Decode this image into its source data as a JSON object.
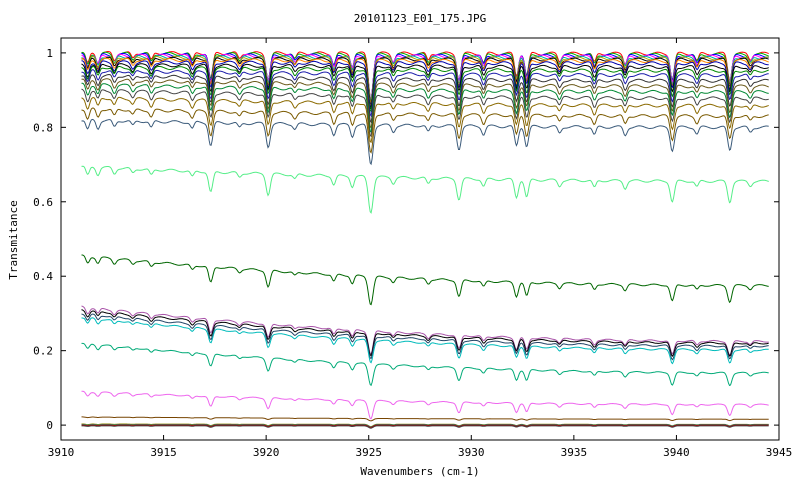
{
  "chart_data": {
    "type": "line",
    "title": "20101123_E01_175.JPG",
    "xlabel": "Wavenumbers (cm-1)",
    "ylabel": "Transmitance",
    "xlim": [
      3910,
      3945
    ],
    "ylim": [
      -0.04,
      1.04
    ],
    "x_ticks": [
      3910,
      3915,
      3920,
      3925,
      3930,
      3935,
      3940,
      3945
    ],
    "x_tick_labels": [
      "3910",
      "3915",
      "3920",
      "3925",
      "3930",
      "3935",
      "3940",
      "3945"
    ],
    "y_ticks": [
      0,
      0.2,
      0.4,
      0.6,
      0.8,
      1
    ],
    "y_tick_labels": [
      "0",
      "0.2",
      "0.4",
      "0.6",
      "0.8",
      "1"
    ],
    "grid": false,
    "legend": "none",
    "x_start": 3911,
    "x_end": 3944.5,
    "absorption_lines": [
      {
        "center": 3911.3,
        "depth": 0.03,
        "width": 0.12
      },
      {
        "center": 3911.8,
        "depth": 0.025,
        "width": 0.12
      },
      {
        "center": 3912.6,
        "depth": 0.02,
        "width": 0.12
      },
      {
        "center": 3913.5,
        "depth": 0.015,
        "width": 0.12
      },
      {
        "center": 3914.4,
        "depth": 0.02,
        "width": 0.12
      },
      {
        "center": 3916.4,
        "depth": 0.02,
        "width": 0.12
      },
      {
        "center": 3917.3,
        "depth": 0.07,
        "width": 0.14
      },
      {
        "center": 3918.7,
        "depth": 0.015,
        "width": 0.12
      },
      {
        "center": 3920.1,
        "depth": 0.07,
        "width": 0.14
      },
      {
        "center": 3921.4,
        "depth": 0.015,
        "width": 0.12
      },
      {
        "center": 3923.3,
        "depth": 0.03,
        "width": 0.12
      },
      {
        "center": 3924.2,
        "depth": 0.035,
        "width": 0.12
      },
      {
        "center": 3925.1,
        "depth": 0.12,
        "width": 0.16
      },
      {
        "center": 3926.2,
        "depth": 0.02,
        "width": 0.12
      },
      {
        "center": 3927.9,
        "depth": 0.02,
        "width": 0.12
      },
      {
        "center": 3929.4,
        "depth": 0.07,
        "width": 0.14
      },
      {
        "center": 3930.6,
        "depth": 0.025,
        "width": 0.12
      },
      {
        "center": 3932.2,
        "depth": 0.06,
        "width": 0.13
      },
      {
        "center": 3932.7,
        "depth": 0.06,
        "width": 0.13
      },
      {
        "center": 3934.3,
        "depth": 0.02,
        "width": 0.12
      },
      {
        "center": 3936.0,
        "depth": 0.025,
        "width": 0.12
      },
      {
        "center": 3937.5,
        "depth": 0.025,
        "width": 0.12
      },
      {
        "center": 3939.8,
        "depth": 0.07,
        "width": 0.14
      },
      {
        "center": 3941.0,
        "depth": 0.02,
        "width": 0.12
      },
      {
        "center": 3942.6,
        "depth": 0.07,
        "width": 0.14
      },
      {
        "center": 3943.6,
        "depth": 0.015,
        "width": 0.12
      }
    ],
    "series": [
      {
        "color": "#ff0000",
        "start": 1.0,
        "end": 0.998
      },
      {
        "color": "#00aa00",
        "start": 0.998,
        "end": 0.995
      },
      {
        "color": "#0000ff",
        "start": 0.995,
        "end": 0.992
      },
      {
        "color": "#ff00ff",
        "start": 0.993,
        "end": 0.99
      },
      {
        "color": "#00aaaa",
        "start": 0.99,
        "end": 0.987
      },
      {
        "color": "#aaaa00",
        "start": 0.988,
        "end": 0.985
      },
      {
        "color": "#000000",
        "start": 0.985,
        "end": 0.982
      },
      {
        "color": "#ff8800",
        "start": 0.982,
        "end": 0.978
      },
      {
        "color": "#0000aa",
        "start": 0.975,
        "end": 0.972
      },
      {
        "color": "#000000",
        "start": 0.968,
        "end": 0.962
      },
      {
        "color": "#008800",
        "start": 0.962,
        "end": 0.952
      },
      {
        "color": "#1a1aaa",
        "start": 0.952,
        "end": 0.94
      },
      {
        "color": "#333333",
        "start": 0.94,
        "end": 0.925
      },
      {
        "color": "#6b5a1a",
        "start": 0.928,
        "end": 0.91
      },
      {
        "color": "#008833",
        "start": 0.915,
        "end": 0.895
      },
      {
        "color": "#444444",
        "start": 0.9,
        "end": 0.878
      },
      {
        "color": "#8b6a00",
        "start": 0.88,
        "end": 0.858
      },
      {
        "color": "#7a5a00",
        "start": 0.85,
        "end": 0.83
      },
      {
        "color": "#3a5a7a",
        "start": 0.82,
        "end": 0.8
      },
      {
        "color": "#55ee88",
        "start": 0.695,
        "end": 0.655
      },
      {
        "color": "#006600",
        "start": 0.455,
        "end": 0.375
      },
      {
        "color": "#aa55aa",
        "start": 0.318,
        "end": 0.225
      },
      {
        "color": "#000000",
        "start": 0.31,
        "end": 0.22
      },
      {
        "color": "#224466",
        "start": 0.3,
        "end": 0.212
      },
      {
        "color": "#00bbbb",
        "start": 0.29,
        "end": 0.202
      },
      {
        "color": "#00aa77",
        "start": 0.22,
        "end": 0.14
      },
      {
        "color": "#ee66ee",
        "start": 0.09,
        "end": 0.055
      },
      {
        "color": "#774400",
        "start": 0.022,
        "end": 0.016
      },
      {
        "color": "#888800",
        "start": 0.003,
        "end": 0.002
      },
      {
        "color": "#0088aa",
        "start": 0.001,
        "end": 0.001
      },
      {
        "color": "#aa0000",
        "start": 0.0,
        "end": 0.0
      },
      {
        "color": "#444444",
        "start": -0.002,
        "end": -0.002
      }
    ]
  }
}
